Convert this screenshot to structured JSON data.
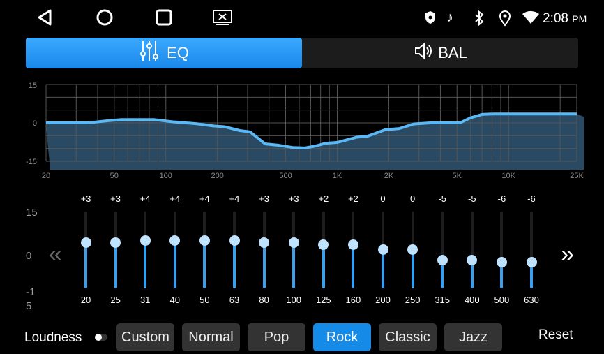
{
  "status_bar": {
    "time": "2:08",
    "ampm": "PM",
    "icons": [
      "shield-icon",
      "music-note-icon",
      "bluetooth-icon",
      "location-icon",
      "wifi-icon"
    ]
  },
  "nav": {
    "back": "◁",
    "home": "○",
    "recents": "□",
    "screen": "⊠"
  },
  "tabs": [
    {
      "label": "EQ",
      "icon": "equalizer-icon",
      "active": true
    },
    {
      "label": "BAL",
      "icon": "speaker-icon",
      "active": false
    }
  ],
  "chart_data": {
    "type": "line",
    "title": "",
    "x_scale": "log",
    "ylim": [
      -15,
      15
    ],
    "y_ticks": [
      "15",
      "0",
      "-15"
    ],
    "x_ticks": [
      {
        "label": "20",
        "f": 20
      },
      {
        "label": "50",
        "f": 50
      },
      {
        "label": "100",
        "f": 100
      },
      {
        "label": "200",
        "f": 200
      },
      {
        "label": "500",
        "f": 500
      },
      {
        "label": "1K",
        "f": 1000
      },
      {
        "label": "2K",
        "f": 2000
      },
      {
        "label": "5K",
        "f": 5000
      },
      {
        "label": "10K",
        "f": 10000
      },
      {
        "label": "25K",
        "f": 25000
      }
    ],
    "grid": true,
    "curve": [
      [
        20,
        0
      ],
      [
        35,
        0
      ],
      [
        45,
        0.8
      ],
      [
        55,
        1.3
      ],
      [
        85,
        1.3
      ],
      [
        110,
        0.4
      ],
      [
        150,
        -0.3
      ],
      [
        190,
        -1.2
      ],
      [
        220,
        -1.5
      ],
      [
        270,
        -3
      ],
      [
        310,
        -3.5
      ],
      [
        380,
        -8.2
      ],
      [
        450,
        -8.7
      ],
      [
        550,
        -9.6
      ],
      [
        650,
        -9.8
      ],
      [
        750,
        -9
      ],
      [
        850,
        -8
      ],
      [
        1000,
        -7.6
      ],
      [
        1300,
        -5.6
      ],
      [
        1500,
        -5.2
      ],
      [
        1900,
        -2.7
      ],
      [
        2300,
        -2.2
      ],
      [
        2800,
        -0.4
      ],
      [
        3500,
        0
      ],
      [
        5200,
        0
      ],
      [
        6000,
        2
      ],
      [
        7000,
        3.3
      ],
      [
        8000,
        3.5
      ],
      [
        25000,
        3.5
      ]
    ],
    "color": "#5ab8f5",
    "fill": "#2a4a63"
  },
  "eq": {
    "scale": {
      "top": "15",
      "mid": "0",
      "bottom_line1": "-1",
      "bottom_line2": "5"
    },
    "bands": [
      {
        "freq": "20",
        "value": "+3",
        "v": 3
      },
      {
        "freq": "25",
        "value": "+3",
        "v": 3
      },
      {
        "freq": "31",
        "value": "+4",
        "v": 4
      },
      {
        "freq": "40",
        "value": "+4",
        "v": 4
      },
      {
        "freq": "50",
        "value": "+4",
        "v": 4
      },
      {
        "freq": "63",
        "value": "+4",
        "v": 4
      },
      {
        "freq": "80",
        "value": "+3",
        "v": 3
      },
      {
        "freq": "100",
        "value": "+3",
        "v": 3
      },
      {
        "freq": "125",
        "value": "+2",
        "v": 2
      },
      {
        "freq": "160",
        "value": "+2",
        "v": 2
      },
      {
        "freq": "200",
        "value": "0",
        "v": 0
      },
      {
        "freq": "250",
        "value": "0",
        "v": 0
      },
      {
        "freq": "315",
        "value": "-5",
        "v": -5
      },
      {
        "freq": "400",
        "value": "-5",
        "v": -5
      },
      {
        "freq": "500",
        "value": "-6",
        "v": -6
      },
      {
        "freq": "630",
        "value": "-6",
        "v": -6
      }
    ],
    "prev": "«",
    "next": "»"
  },
  "bottom": {
    "loudness_label": "Loudness",
    "loudness_on": false,
    "presets": [
      "Custom",
      "Normal",
      "Pop",
      "Rock",
      "Classic",
      "Jazz"
    ],
    "active_preset": "Rock",
    "reset": "Reset"
  }
}
